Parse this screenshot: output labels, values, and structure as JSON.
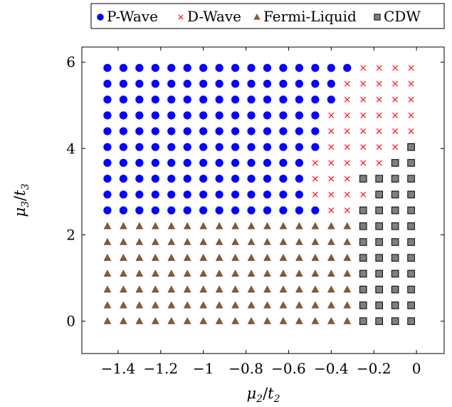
{
  "chart_data": {
    "type": "scatter",
    "x_label": {
      "base": "μ",
      "sub1": "2",
      "slash": "/",
      "mid": "t",
      "sub2": "2"
    },
    "y_label": {
      "base": "μ",
      "sub1": "3",
      "slash": "/",
      "mid": "t",
      "sub2": "3"
    },
    "xlim": [
      -1.57,
      0.13
    ],
    "ylim": [
      -0.75,
      6.35
    ],
    "x_ticks": [
      -1.4,
      -1.2,
      -1,
      -0.8,
      -0.6,
      -0.4,
      -0.2,
      0
    ],
    "x_tick_labels": [
      "−1.4",
      "−1.2",
      "−1",
      "−0.8",
      "−0.6",
      "−0.4",
      "−0.2",
      "0"
    ],
    "y_ticks": [
      0,
      2,
      4,
      6
    ],
    "y_tick_labels": [
      "0",
      "2",
      "4",
      "6"
    ],
    "grid": false,
    "legend_position": "top-center",
    "grid_x_start": -1.45,
    "grid_x_step": 0.075,
    "grid_x_count": 20,
    "grid_y_start": 0,
    "grid_y_step": 0.3667,
    "grid_y_count": 17,
    "series": [
      {
        "name": "P-Wave",
        "marker": "circle",
        "color": "#0000ff",
        "rows": [
          {
            "y": 5.8667,
            "x_indices": [
              0,
              1,
              2,
              3,
              4,
              5,
              6,
              7,
              8,
              9,
              10,
              11,
              12,
              13,
              14,
              15
            ]
          },
          {
            "y": 5.5,
            "x_indices": [
              0,
              1,
              2,
              3,
              4,
              5,
              6,
              7,
              8,
              9,
              10,
              11,
              12,
              13,
              14
            ]
          },
          {
            "y": 5.1333,
            "x_indices": [
              0,
              1,
              2,
              3,
              4,
              5,
              6,
              7,
              8,
              9,
              10,
              11,
              12,
              13,
              14
            ]
          },
          {
            "y": 4.7667,
            "x_indices": [
              0,
              1,
              2,
              3,
              4,
              5,
              6,
              7,
              8,
              9,
              10,
              11,
              12,
              13
            ]
          },
          {
            "y": 4.4,
            "x_indices": [
              0,
              1,
              2,
              3,
              4,
              5,
              6,
              7,
              8,
              9,
              10,
              11,
              12,
              13
            ]
          },
          {
            "y": 4.0333,
            "x_indices": [
              0,
              1,
              2,
              3,
              4,
              5,
              6,
              7,
              8,
              9,
              10,
              11,
              12,
              13
            ]
          },
          {
            "y": 3.6667,
            "x_indices": [
              0,
              1,
              2,
              3,
              4,
              5,
              6,
              7,
              8,
              9,
              10,
              11,
              12
            ]
          },
          {
            "y": 3.3,
            "x_indices": [
              0,
              1,
              2,
              3,
              4,
              5,
              6,
              7,
              8,
              9,
              10,
              11,
              12
            ]
          },
          {
            "y": 2.9333,
            "x_indices": [
              0,
              1,
              2,
              3,
              4,
              5,
              6,
              7,
              8,
              9,
              10,
              11,
              12
            ]
          },
          {
            "y": 2.5667,
            "x_indices": [
              0,
              1,
              2,
              3,
              4,
              5,
              6,
              7,
              8,
              9,
              10,
              11,
              12,
              13
            ]
          }
        ]
      },
      {
        "name": "D-Wave",
        "marker": "cross",
        "color": "#ff0000",
        "rows": [
          {
            "y": 5.8667,
            "x_indices": [
              16,
              17,
              18,
              19
            ]
          },
          {
            "y": 5.5,
            "x_indices": [
              15,
              16,
              17,
              18,
              19
            ]
          },
          {
            "y": 5.1333,
            "x_indices": [
              15,
              16,
              17,
              18,
              19
            ]
          },
          {
            "y": 4.7667,
            "x_indices": [
              14,
              15,
              16,
              17,
              18,
              19
            ]
          },
          {
            "y": 4.4,
            "x_indices": [
              14,
              15,
              16,
              17,
              18,
              19
            ]
          },
          {
            "y": 4.0333,
            "x_indices": [
              14,
              15,
              16,
              17,
              18,
              19
            ]
          },
          {
            "y": 3.6667,
            "x_indices": [
              13,
              14,
              15,
              16,
              17,
              18
            ]
          },
          {
            "y": 3.3,
            "x_indices": [
              13,
              14,
              15,
              16,
              17
            ]
          },
          {
            "y": 2.9333,
            "x_indices": [
              13,
              14,
              15,
              16
            ]
          },
          {
            "y": 2.5667,
            "x_indices": [
              14,
              15,
              16
            ]
          }
        ]
      },
      {
        "name": "Fermi-Liquid",
        "marker": "triangle",
        "color": "#8b5a2b",
        "rows": [
          {
            "y": 2.2,
            "x_indices": [
              0,
              1,
              2,
              3,
              4,
              5,
              6,
              7,
              8,
              9,
              10,
              11,
              12,
              13,
              14,
              15
            ]
          },
          {
            "y": 1.8333,
            "x_indices": [
              0,
              1,
              2,
              3,
              4,
              5,
              6,
              7,
              8,
              9,
              10,
              11,
              12,
              13,
              14,
              15
            ]
          },
          {
            "y": 1.4667,
            "x_indices": [
              0,
              1,
              2,
              3,
              4,
              5,
              6,
              7,
              8,
              9,
              10,
              11,
              12,
              13,
              14,
              15
            ]
          },
          {
            "y": 1.1,
            "x_indices": [
              0,
              1,
              2,
              3,
              4,
              5,
              6,
              7,
              8,
              9,
              10,
              11,
              12,
              13,
              14,
              15
            ]
          },
          {
            "y": 0.7333,
            "x_indices": [
              0,
              1,
              2,
              3,
              4,
              5,
              6,
              7,
              8,
              9,
              10,
              11,
              12,
              13,
              14,
              15
            ]
          },
          {
            "y": 0.3667,
            "x_indices": [
              0,
              1,
              2,
              3,
              4,
              5,
              6,
              7,
              8,
              9,
              10,
              11,
              12,
              13,
              14,
              15
            ]
          },
          {
            "y": 0,
            "x_indices": [
              0,
              1,
              2,
              3,
              4,
              5,
              6,
              7,
              8,
              9,
              10,
              11,
              12,
              13,
              14,
              15
            ]
          }
        ]
      },
      {
        "name": "CDW",
        "marker": "square",
        "color": "#7f7f7f",
        "rows": [
          {
            "y": 4.0333,
            "x_indices": [
              19
            ]
          },
          {
            "y": 3.6667,
            "x_indices": [
              18,
              19
            ]
          },
          {
            "y": 3.3,
            "x_indices": [
              16,
              17,
              18,
              19
            ]
          },
          {
            "y": 2.9333,
            "x_indices": [
              17,
              18,
              19
            ]
          },
          {
            "y": 2.5667,
            "x_indices": [
              16,
              17,
              18,
              19
            ]
          },
          {
            "y": 2.2,
            "x_indices": [
              16,
              17,
              18,
              19
            ]
          },
          {
            "y": 1.8333,
            "x_indices": [
              16,
              17,
              18,
              19
            ]
          },
          {
            "y": 1.4667,
            "x_indices": [
              16,
              17,
              18,
              19
            ]
          },
          {
            "y": 1.1,
            "x_indices": [
              16,
              17,
              18,
              19
            ]
          },
          {
            "y": 0.7333,
            "x_indices": [
              16,
              17,
              18,
              19
            ]
          },
          {
            "y": 0.3667,
            "x_indices": [
              16,
              17,
              18,
              19
            ]
          },
          {
            "y": 0,
            "x_indices": [
              16,
              17,
              18,
              19
            ]
          }
        ]
      }
    ]
  }
}
